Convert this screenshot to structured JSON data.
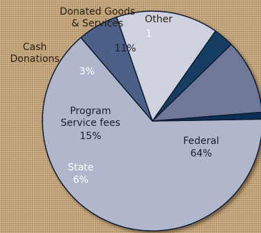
{
  "chart_data": {
    "type": "pie",
    "title": "",
    "slices": [
      {
        "label": "Federal",
        "value": 64,
        "value_label": "64%",
        "color": "#b0b6cb",
        "text_color": "#1a1e2e"
      },
      {
        "label": "State",
        "value": 6,
        "value_label": "6%",
        "color": "#4d6187",
        "text_color": "#ffffff"
      },
      {
        "label": "Program Service fees",
        "value": 15,
        "value_label": "15%",
        "color": "#ced1de",
        "text_color": "#1a1e2e"
      },
      {
        "label": "Cash Donations",
        "value": 3,
        "value_label": "3%",
        "color": "#173e62",
        "text_color": "#ffffff"
      },
      {
        "label": "Donated Goods & Services",
        "value": 11,
        "value_label": "11%",
        "color": "#6f7898",
        "text_color": "#1a1e2e"
      },
      {
        "label": "Other",
        "value": 1,
        "value_label": "1",
        "color": "#0d2f55",
        "text_color": "#ffffff"
      }
    ]
  }
}
